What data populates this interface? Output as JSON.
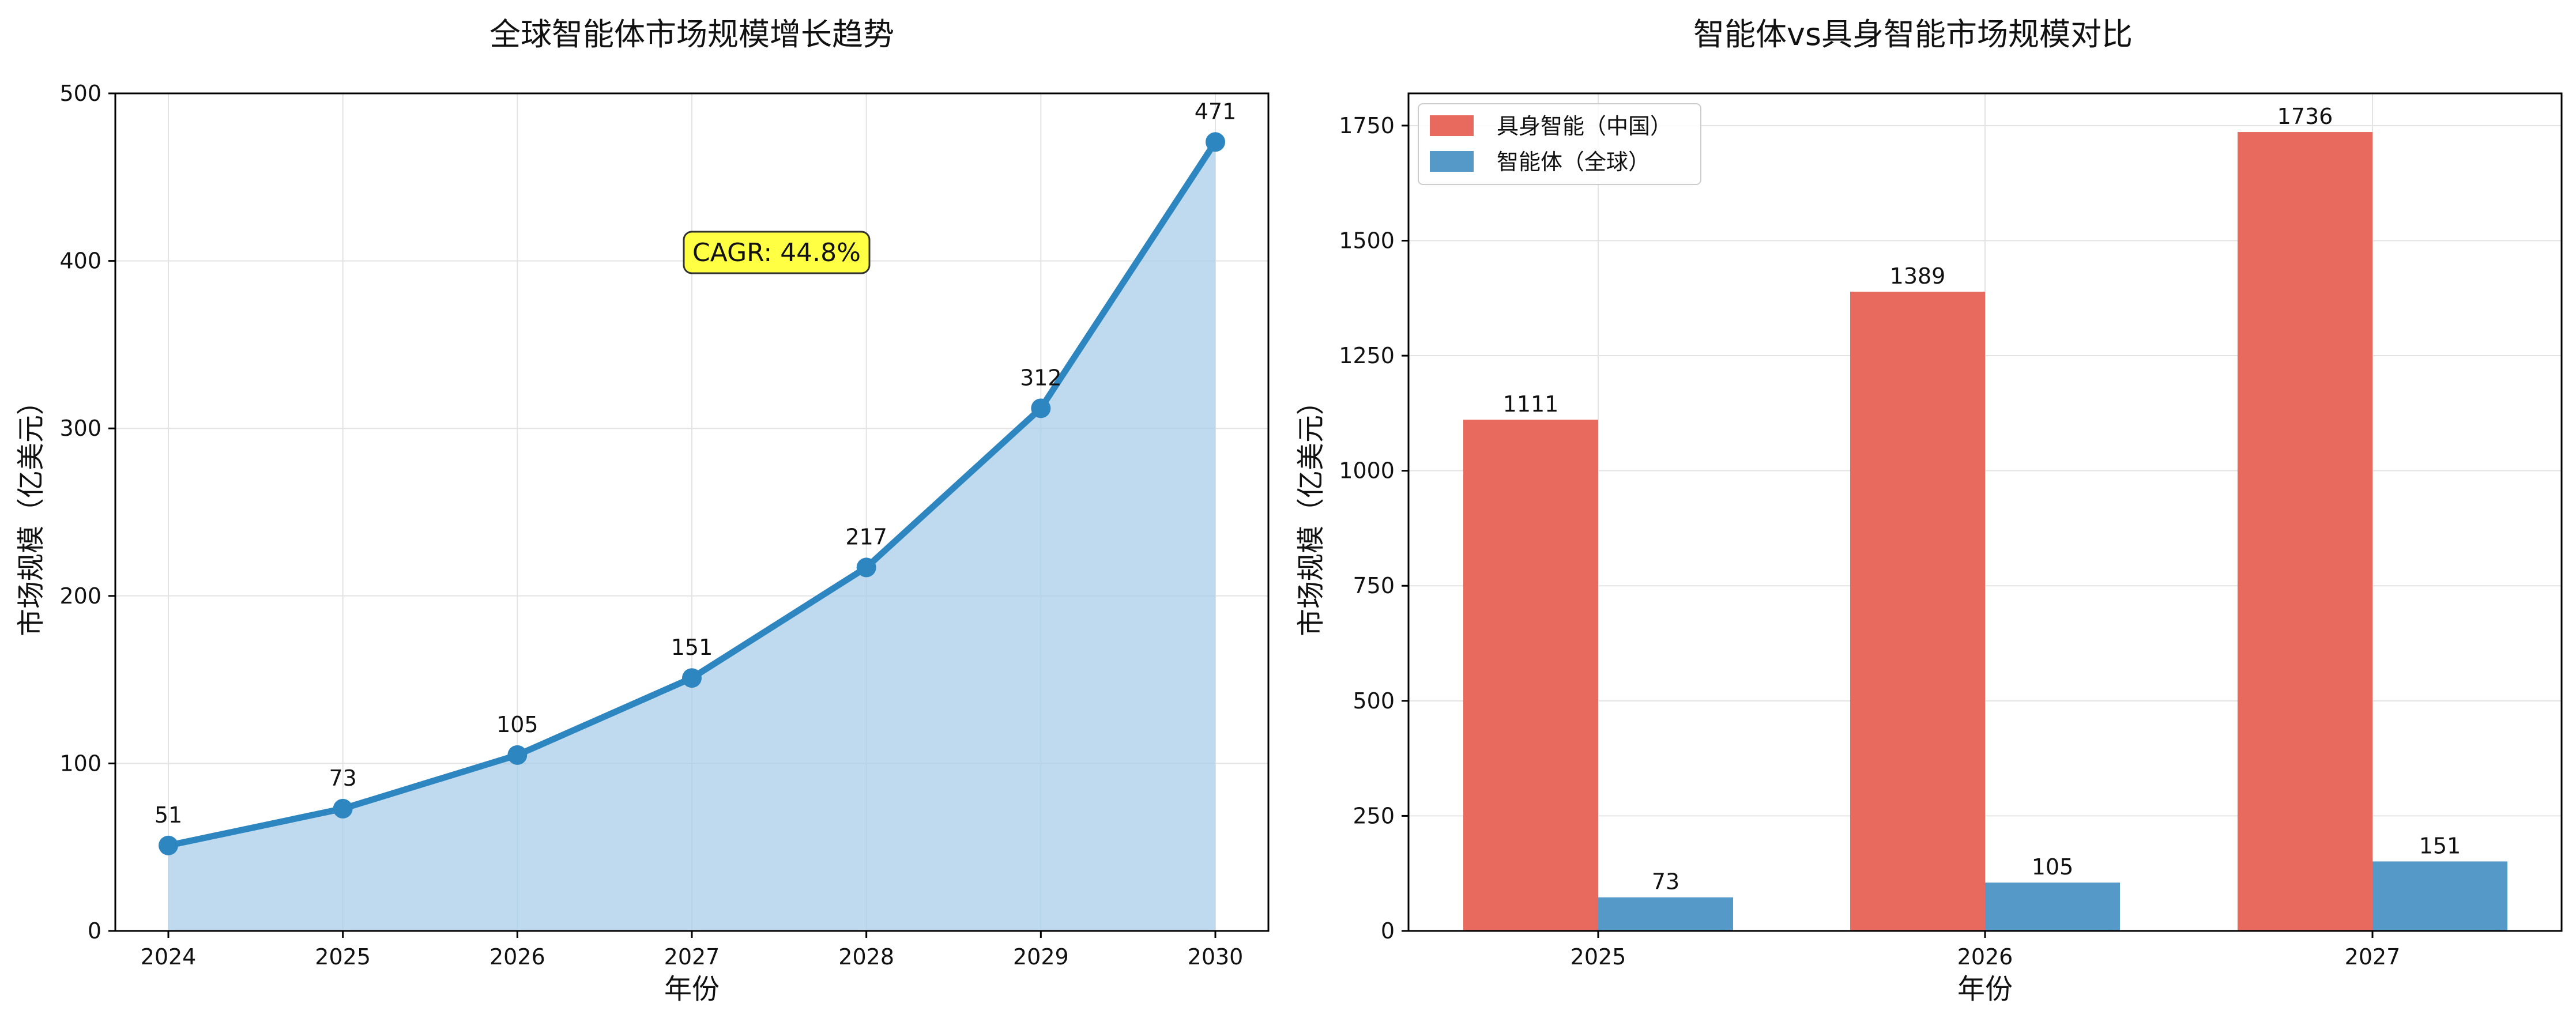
{
  "colors": {
    "line": "#2e86c1",
    "area": "#a9cde8",
    "bar_china": "#e8695e",
    "bar_global": "#5499c7",
    "annotation_bg": "#ffff44",
    "grid": "#e3e3e3"
  },
  "chart_data": [
    {
      "type": "area",
      "title": "全球智能体市场规模增长趋势",
      "xlabel": "年份",
      "ylabel": "市场规模（亿美元）",
      "x": [
        "2024",
        "2025",
        "2026",
        "2027",
        "2028",
        "2029",
        "2030"
      ],
      "values": [
        51,
        73,
        105,
        151,
        217,
        312,
        471
      ],
      "data_labels": [
        "51",
        "73",
        "105",
        "151",
        "217",
        "312",
        "471"
      ],
      "yticks": [
        "0",
        "100",
        "200",
        "300",
        "400",
        "500"
      ],
      "ylim": [
        0,
        500
      ],
      "annotation": "CAGR: 44.8%",
      "grid": true
    },
    {
      "type": "bar",
      "title": "智能体vs具身智能市场规模对比",
      "xlabel": "年份",
      "ylabel": "市场规模（亿美元）",
      "categories": [
        "2025",
        "2026",
        "2027"
      ],
      "series": [
        {
          "name": "具身智能（中国）",
          "values": [
            1111,
            1389,
            1736
          ],
          "labels": [
            "1111",
            "1389",
            "1736"
          ]
        },
        {
          "name": "智能体（全球）",
          "values": [
            73,
            105,
            151
          ],
          "labels": [
            "73",
            "105",
            "151"
          ]
        }
      ],
      "yticks": [
        "0",
        "250",
        "500",
        "750",
        "1000",
        "1250",
        "1500",
        "1750"
      ],
      "ylim": [
        0,
        1820
      ],
      "legend_position": "top-left",
      "grid": true
    }
  ]
}
